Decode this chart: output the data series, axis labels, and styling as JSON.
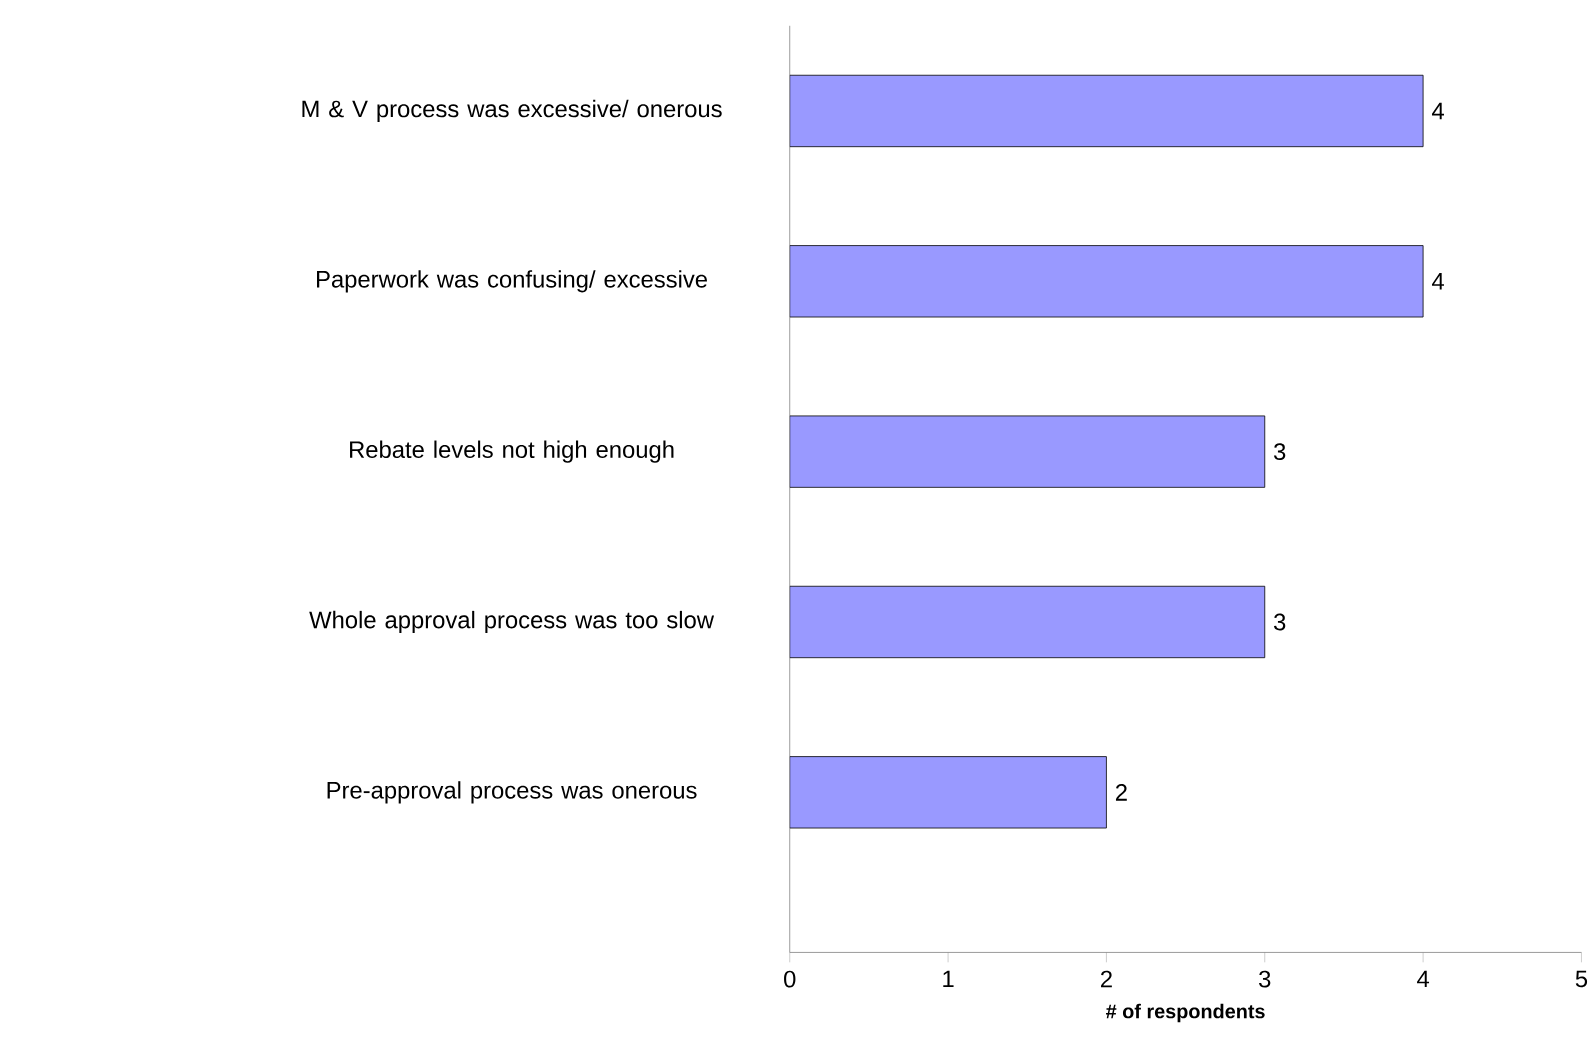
{
  "chart_data": {
    "type": "bar",
    "orientation": "horizontal",
    "xlabel": "# of respondents",
    "categories": [
      "M & V process was excessive/ onerous",
      "Paperwork was confusing/ excessive",
      "Rebate levels not high enough",
      "Whole approval process was too slow",
      "Pre-approval process was onerous"
    ],
    "values": [
      4,
      4,
      3,
      3,
      2
    ],
    "color": "#9999ff",
    "xlim": [
      0,
      5
    ],
    "xticks": [
      0,
      1,
      2,
      3,
      4,
      5
    ],
    "data_labels": true
  }
}
